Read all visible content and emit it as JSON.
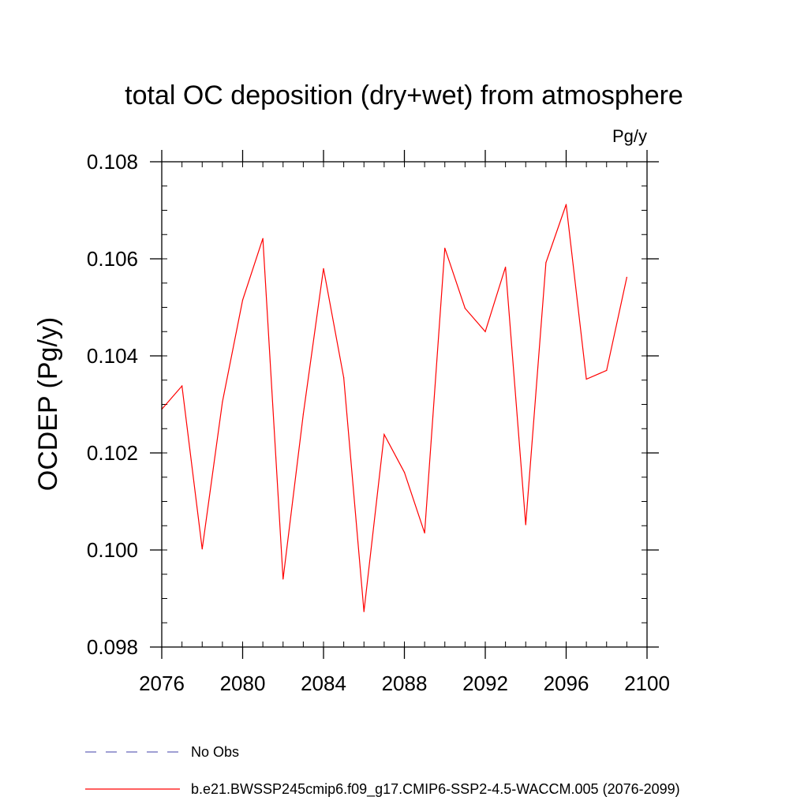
{
  "chart_data": {
    "type": "line",
    "title": "total OC deposition (dry+wet) from atmosphere",
    "units_label": "Pg/y",
    "ylabel": "OCDEP  (Pg/y)",
    "xlabel": "",
    "xlim": [
      2076,
      2100
    ],
    "ylim": [
      0.098,
      0.108
    ],
    "x_ticks": [
      2076,
      2080,
      2084,
      2088,
      2092,
      2096,
      2100
    ],
    "x_tick_labels": [
      "2076",
      "2080",
      "2084",
      "2088",
      "2092",
      "2096",
      "2100"
    ],
    "y_ticks": [
      0.098,
      0.1,
      0.102,
      0.104,
      0.106,
      0.108
    ],
    "y_tick_labels": [
      "0.098",
      "0.100",
      "0.102",
      "0.104",
      "0.106",
      "0.108"
    ],
    "x_minor_step": 1,
    "y_minor_step": 0.0005,
    "grid": false,
    "series": [
      {
        "name": "b.e21.BWSSP245cmip6.f09_g17.CMIP6-SSP2-4.5-WACCM.005 (2076-2099)",
        "color": "#ff0000",
        "dash": "solid",
        "x": [
          2076,
          2077,
          2078,
          2079,
          2080,
          2081,
          2082,
          2083,
          2084,
          2085,
          2086,
          2087,
          2088,
          2089,
          2090,
          2091,
          2092,
          2093,
          2094,
          2095,
          2096,
          2097,
          2098,
          2099
        ],
        "values": [
          0.1029,
          0.10338,
          0.10002,
          0.10305,
          0.10515,
          0.10642,
          0.0994,
          0.1028,
          0.1058,
          0.10355,
          0.09873,
          0.10238,
          0.1016,
          0.10035,
          0.10622,
          0.10498,
          0.1045,
          0.10583,
          0.10052,
          0.10592,
          0.10712,
          0.10352,
          0.1037,
          0.10562
        ]
      }
    ],
    "legend": [
      {
        "label": "No Obs",
        "color": "#6666bb",
        "dash": "dashed"
      },
      {
        "label": "b.e21.BWSSP245cmip6.f09_g17.CMIP6-SSP2-4.5-WACCM.005 (2076-2099)",
        "color": "#ff0000",
        "dash": "solid"
      }
    ],
    "legend_position": "bottom-left"
  }
}
